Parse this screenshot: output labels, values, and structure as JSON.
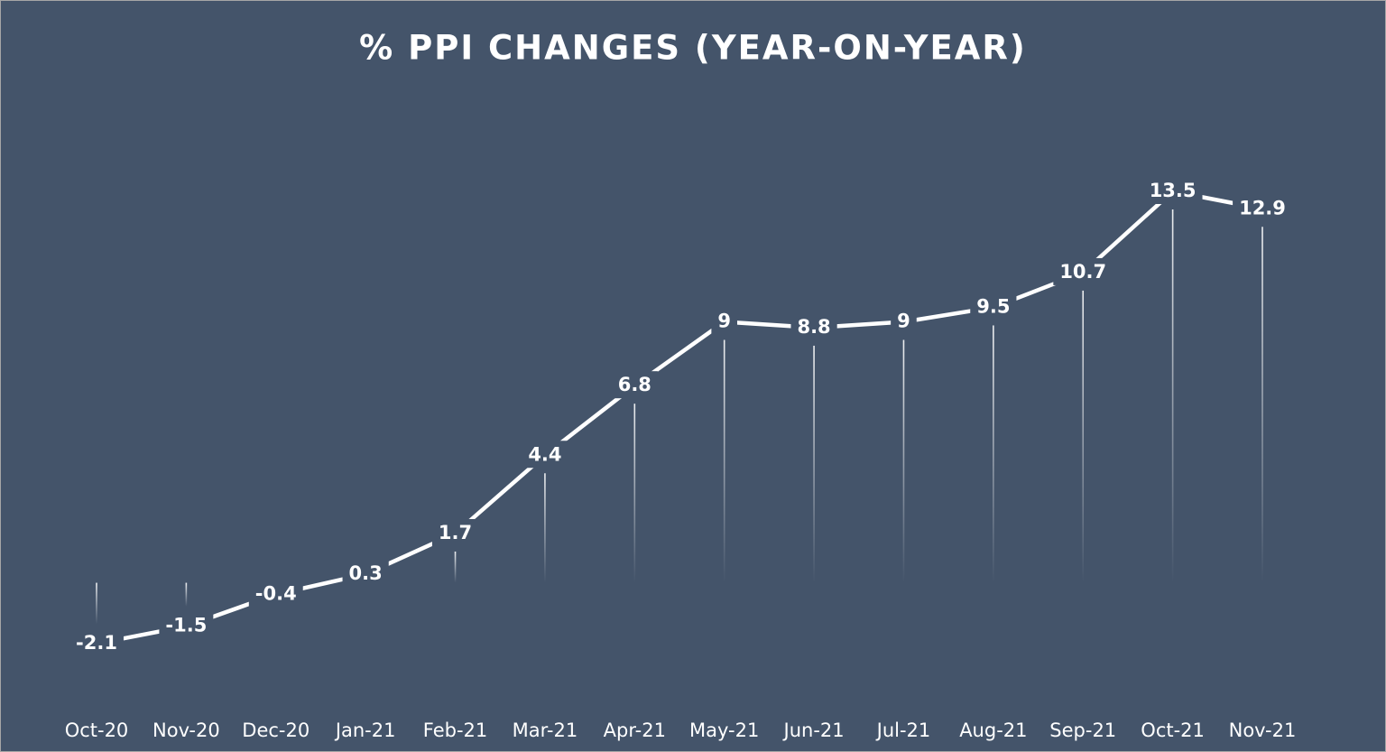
{
  "chart_data": {
    "type": "line",
    "title": "% PPI CHANGES (YEAR-ON-YEAR)",
    "categories": [
      "Oct-20",
      "Nov-20",
      "Dec-20",
      "Jan-21",
      "Feb-21",
      "Mar-21",
      "Apr-21",
      "May-21",
      "Jun-21",
      "Jul-21",
      "Aug-21",
      "Sep-21",
      "Oct-21",
      "Nov-21"
    ],
    "values": [
      -2.1,
      -1.5,
      -0.4,
      0.3,
      1.7,
      4.4,
      6.8,
      9,
      8.8,
      9,
      9.5,
      10.7,
      13.5,
      12.9
    ],
    "color": "#ffffff"
  }
}
